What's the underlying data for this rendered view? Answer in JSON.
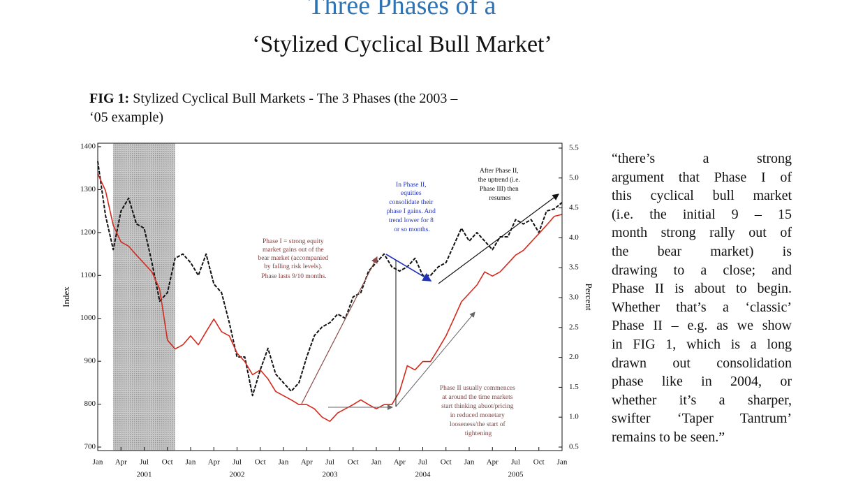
{
  "title": "Three Phases of a",
  "subtitle": "‘Stylized Cyclical Bull Market’",
  "caption": {
    "label": "FIG 1:",
    "lines": [
      "Stylized Cyclical Bull Markets - The 3 Phases (the 2003 –",
      "‘05 example)"
    ]
  },
  "quote": [
    "“there’s a strong",
    "argument that Phase I of",
    "this cyclical bull market",
    "(i.e. the initial 9 – 15",
    "month strong rally out of",
    "the bear market) is",
    "drawing to a close; and",
    "Phase II is about to begin.",
    "Whether that’s a ‘classic’",
    "Phase II – e.g. as we show",
    "in FIG 1, which is a long",
    "drawn out consolidation",
    "phase like in 2004, or",
    "whether it’s a sharper,",
    "swifter ‘Taper Tantrum’",
    "remains to be seen.”"
  ],
  "chart_data": {
    "type": "line",
    "ylabel": "Index",
    "y2label": "Percent",
    "x": [
      "2001-01",
      "2001-02",
      "2001-03",
      "2001-04",
      "2001-05",
      "2001-06",
      "2001-07",
      "2001-08",
      "2001-09",
      "2001-10",
      "2001-11",
      "2001-12",
      "2002-01",
      "2002-02",
      "2002-03",
      "2002-04",
      "2002-05",
      "2002-06",
      "2002-07",
      "2002-08",
      "2002-09",
      "2002-10",
      "2002-11",
      "2002-12",
      "2003-01",
      "2003-02",
      "2003-03",
      "2003-04",
      "2003-05",
      "2003-06",
      "2003-07",
      "2003-08",
      "2003-09",
      "2003-10",
      "2003-11",
      "2003-12",
      "2004-01",
      "2004-02",
      "2004-03",
      "2004-04",
      "2004-05",
      "2004-06",
      "2004-07",
      "2004-08",
      "2004-09",
      "2004-10",
      "2004-11",
      "2004-12",
      "2005-01",
      "2005-02",
      "2005-03",
      "2005-04",
      "2005-05",
      "2005-06",
      "2005-07",
      "2005-08",
      "2005-09",
      "2005-10",
      "2005-11",
      "2005-12",
      "2006-01"
    ],
    "series": [
      {
        "color": "#111111",
        "dashed": true,
        "values": [
          1366,
          1240,
          1160,
          1250,
          1280,
          1220,
          1210,
          1130,
          1040,
          1060,
          1140,
          1150,
          1130,
          1100,
          1150,
          1080,
          1060,
          990,
          910,
          910,
          820,
          880,
          930,
          870,
          850,
          830,
          850,
          910,
          960,
          980,
          990,
          1010,
          1000,
          1050,
          1060,
          1110,
          1130,
          1150,
          1120,
          1110,
          1120,
          1140,
          1100,
          1100,
          1120,
          1130,
          1170,
          1210,
          1180,
          1200,
          1180,
          1160,
          1190,
          1190,
          1230,
          1220,
          1230,
          1200,
          1250,
          1255,
          1270
        ]
      },
      {
        "color": "#d42a1e",
        "axis": "y2",
        "values": [
          5.07,
          4.79,
          4.21,
          3.93,
          3.86,
          3.71,
          3.57,
          3.43,
          3.14,
          2.29,
          2.14,
          2.21,
          2.36,
          2.21,
          2.43,
          2.64,
          2.43,
          2.36,
          2.07,
          1.93,
          1.71,
          1.79,
          1.64,
          1.43,
          1.36,
          1.29,
          1.21,
          1.21,
          1.14,
          1.0,
          0.93,
          1.07,
          1.14,
          1.21,
          1.29,
          1.21,
          1.14,
          1.21,
          1.21,
          1.43,
          1.86,
          1.79,
          1.93,
          1.93,
          2.14,
          2.36,
          2.64,
          2.93,
          3.07,
          3.21,
          3.43,
          3.36,
          3.43,
          3.57,
          3.71,
          3.79,
          3.93,
          4.07,
          4.21,
          4.36,
          4.39
        ]
      }
    ],
    "shaded": [
      "2001-03",
      "2001-11"
    ],
    "shade_color": "#bdbdbd",
    "xlim": [
      "2001-01",
      "2006-01"
    ],
    "xticks": [
      {
        "value": "2001-01",
        "label": "Jan"
      },
      {
        "value": "2001-04",
        "label": "Apr"
      },
      {
        "value": "2001-07",
        "label": "Jul"
      },
      {
        "value": "2001-10",
        "label": "Oct"
      },
      {
        "value": "2002-01",
        "label": "Jan"
      },
      {
        "value": "2002-04",
        "label": "Apr"
      },
      {
        "value": "2002-07",
        "label": "Jul"
      },
      {
        "value": "2002-10",
        "label": "Oct"
      },
      {
        "value": "2003-01",
        "label": "Jan"
      },
      {
        "value": "2003-04",
        "label": "Apr"
      },
      {
        "value": "2003-07",
        "label": "Jul"
      },
      {
        "value": "2003-10",
        "label": "Oct"
      },
      {
        "value": "2004-01",
        "label": "Jan"
      },
      {
        "value": "2004-04",
        "label": "Apr"
      },
      {
        "value": "2004-07",
        "label": "Jul"
      },
      {
        "value": "2004-10",
        "label": "Oct"
      },
      {
        "value": "2005-01",
        "label": "Jan"
      },
      {
        "value": "2005-04",
        "label": "Apr"
      },
      {
        "value": "2005-07",
        "label": "Jul"
      },
      {
        "value": "2005-10",
        "label": "Oct"
      },
      {
        "value": "2006-01",
        "label": "Jan"
      }
    ],
    "xyears": [
      "2001",
      "2002",
      "2003",
      "2004",
      "2005"
    ],
    "ylim": [
      700,
      1400
    ],
    "yticks": [
      700,
      800,
      900,
      1000,
      1100,
      1200,
      1300,
      1400
    ],
    "y2lim": [
      0.5,
      5.5
    ],
    "y2ticks": [
      0.5,
      {
        "value": 1,
        "label": "1.0"
      },
      1.5,
      {
        "value": 2,
        "label": "2.0"
      },
      2.5,
      {
        "value": 3,
        "label": "3.0"
      },
      3.5,
      {
        "value": 4,
        "label": "4.0"
      },
      4.5,
      {
        "value": 5,
        "label": "5.0"
      },
      5.5
    ],
    "annotations": [
      {
        "lines": [
          "Phase I = strong equity",
          "market gains out of the",
          "bear market (accompanied",
          "by falling risk levels).",
          "Phase lasts 9/10 months."
        ]
      },
      {
        "lines": [
          "In Phase II,",
          "equities",
          "consolidate their",
          "phase I gains. And",
          "trend lower for 8",
          "or so months."
        ]
      },
      {
        "lines": [
          "After Phase II,",
          "the uptrend (i.e.",
          "Phase III) then",
          "resumes"
        ]
      },
      {
        "lines": [
          "Phase II usually commences",
          "at around the time markets",
          "start thinking abuot/pricing",
          "in reduced monetary",
          "looseness/the start of",
          "tightening"
        ]
      }
    ]
  }
}
